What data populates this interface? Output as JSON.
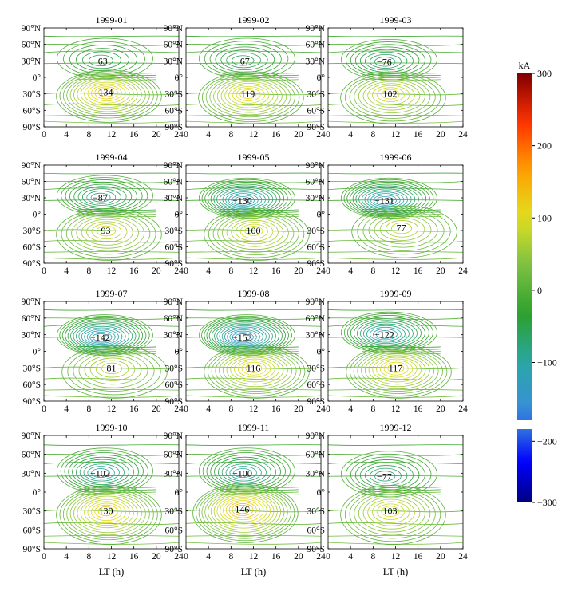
{
  "figure": {
    "colorbar_unit": "kA",
    "colorbar_ticks": [
      "300",
      "200",
      "100",
      "0",
      "−100",
      "−200",
      "−300"
    ],
    "colorbar_tick_values": [
      300,
      200,
      100,
      0,
      -100,
      -200,
      -300
    ],
    "xlabel": "LT (h)",
    "x_ticks": [
      "0",
      "4",
      "8",
      "12",
      "16",
      "20",
      "24"
    ],
    "y_ticks": [
      "90°N",
      "60°N",
      "30°N",
      "0°",
      "30°S",
      "60°S",
      "90°S"
    ],
    "colors": {
      "colormap": [
        "#00007f",
        "#0000ff",
        "#3a8fd9",
        "#2aa7a7",
        "#2ca02c",
        "#7bc043",
        "#e0e020",
        "#ff9f00",
        "#ff3000",
        "#7f0000"
      ]
    }
  },
  "chart_data": [
    {
      "type": "contour",
      "title": "1999-01",
      "xlabel": "",
      "ylabel": "",
      "xlim": [
        0,
        24
      ],
      "ylim": [
        -90,
        90
      ],
      "min": {
        "value": -63,
        "lt": 10,
        "lat": 30
      },
      "max": {
        "value": 134,
        "lt": 11,
        "lat": -27
      }
    },
    {
      "type": "contour",
      "title": "1999-02",
      "xlabel": "",
      "ylabel": "",
      "xlim": [
        0,
        24
      ],
      "ylim": [
        -90,
        90
      ],
      "min": {
        "value": -67,
        "lt": 10,
        "lat": 30
      },
      "max": {
        "value": 119,
        "lt": 11,
        "lat": -30
      }
    },
    {
      "type": "contour",
      "title": "1999-03",
      "xlabel": "",
      "ylabel": "",
      "xlim": [
        0,
        24
      ],
      "ylim": [
        -90,
        90
      ],
      "min": {
        "value": -76,
        "lt": 10,
        "lat": 28
      },
      "max": {
        "value": 102,
        "lt": 11,
        "lat": -30
      }
    },
    {
      "type": "contour",
      "title": "1999-04",
      "xlabel": "",
      "ylabel": "",
      "xlim": [
        0,
        24
      ],
      "ylim": [
        -90,
        90
      ],
      "min": {
        "value": -87,
        "lt": 10,
        "lat": 30
      },
      "max": {
        "value": 93,
        "lt": 11,
        "lat": -30
      }
    },
    {
      "type": "contour",
      "title": "1999-05",
      "xlabel": "",
      "ylabel": "",
      "xlim": [
        0,
        24
      ],
      "ylim": [
        -90,
        90
      ],
      "min": {
        "value": -130,
        "lt": 10,
        "lat": 25
      },
      "max": {
        "value": 100,
        "lt": 12,
        "lat": -30
      }
    },
    {
      "type": "contour",
      "title": "1999-06",
      "xlabel": "",
      "ylabel": "",
      "xlim": [
        0,
        24
      ],
      "ylim": [
        -90,
        90
      ],
      "min": {
        "value": -131,
        "lt": 10,
        "lat": 25
      },
      "max": {
        "value": 77,
        "lt": 13,
        "lat": -25
      }
    },
    {
      "type": "contour",
      "title": "1999-07",
      "xlabel": "",
      "ylabel": "",
      "xlim": [
        0,
        24
      ],
      "ylim": [
        -90,
        90
      ],
      "min": {
        "value": -142,
        "lt": 10,
        "lat": 25
      },
      "max": {
        "value": 81,
        "lt": 12,
        "lat": -30
      }
    },
    {
      "type": "contour",
      "title": "1999-08",
      "xlabel": "",
      "ylabel": "",
      "xlim": [
        0,
        24
      ],
      "ylim": [
        -90,
        90
      ],
      "min": {
        "value": -153,
        "lt": 10,
        "lat": 25
      },
      "max": {
        "value": 116,
        "lt": 12,
        "lat": -30
      }
    },
    {
      "type": "contour",
      "title": "1999-09",
      "xlabel": "",
      "ylabel": "",
      "xlim": [
        0,
        24
      ],
      "ylim": [
        -90,
        90
      ],
      "min": {
        "value": -122,
        "lt": 10,
        "lat": 30
      },
      "max": {
        "value": 117,
        "lt": 12,
        "lat": -30
      }
    },
    {
      "type": "contour",
      "title": "1999-10",
      "xlabel": "LT (h)",
      "ylabel": "",
      "xlim": [
        0,
        24
      ],
      "ylim": [
        -90,
        90
      ],
      "min": {
        "value": -102,
        "lt": 10,
        "lat": 30
      },
      "max": {
        "value": 130,
        "lt": 11,
        "lat": -30
      }
    },
    {
      "type": "contour",
      "title": "1999-11",
      "xlabel": "LT (h)",
      "ylabel": "",
      "xlim": [
        0,
        24
      ],
      "ylim": [
        -90,
        90
      ],
      "min": {
        "value": -100,
        "lt": 10,
        "lat": 30
      },
      "max": {
        "value": 146,
        "lt": 10,
        "lat": -27
      }
    },
    {
      "type": "contour",
      "title": "1999-12",
      "xlabel": "LT (h)",
      "ylabel": "",
      "xlim": [
        0,
        24
      ],
      "ylim": [
        -90,
        90
      ],
      "min": {
        "value": -77,
        "lt": 10,
        "lat": 25
      },
      "max": {
        "value": 103,
        "lt": 11,
        "lat": -30
      }
    }
  ]
}
